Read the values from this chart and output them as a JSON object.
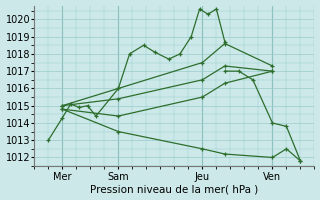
{
  "title": "Pression niveau de la mer( hPa )",
  "bg_color": "#cce8e8",
  "grid_color": "#99cccc",
  "line_color": "#2d6e2d",
  "xlim": [
    0,
    10
  ],
  "ylim": [
    1011.5,
    1020.8
  ],
  "yticks": [
    1012,
    1013,
    1014,
    1015,
    1016,
    1017,
    1018,
    1019,
    1020
  ],
  "xtick_positions": [
    1,
    3,
    6,
    8.5
  ],
  "xtick_labels": [
    "Mer",
    "Sam",
    "Jeu",
    "Ven"
  ],
  "vlines": [
    1,
    3,
    6,
    8.5
  ],
  "series": [
    {
      "x": [
        0.5,
        1.0,
        1.3,
        1.6,
        1.9,
        2.2,
        3.0,
        3.4,
        3.9,
        4.3,
        4.8,
        5.2,
        5.6,
        5.9,
        6.2,
        6.5,
        6.8
      ],
      "y": [
        1013.0,
        1014.3,
        1015.1,
        1014.9,
        1015.0,
        1014.4,
        1016.0,
        1018.0,
        1018.5,
        1018.1,
        1017.7,
        1018.0,
        1019.0,
        1020.6,
        1020.3,
        1020.6,
        1018.7
      ]
    },
    {
      "x": [
        1.0,
        3.0,
        6.0,
        6.8,
        8.5
      ],
      "y": [
        1015.0,
        1016.0,
        1017.5,
        1018.6,
        1017.3
      ]
    },
    {
      "x": [
        1.0,
        3.0,
        6.0,
        6.8,
        8.5
      ],
      "y": [
        1015.0,
        1015.4,
        1016.5,
        1017.3,
        1017.0
      ]
    },
    {
      "x": [
        1.0,
        3.0,
        6.0,
        6.8,
        8.5
      ],
      "y": [
        1014.8,
        1014.4,
        1015.5,
        1016.3,
        1017.0
      ]
    },
    {
      "x": [
        1.0,
        3.0,
        6.0,
        6.8,
        8.5,
        9.0,
        9.5
      ],
      "y": [
        1014.8,
        1013.5,
        1012.5,
        1012.2,
        1012.0,
        1012.5,
        1011.8
      ]
    },
    {
      "x": [
        6.8,
        7.3,
        7.8,
        8.5,
        9.0,
        9.5
      ],
      "y": [
        1017.0,
        1017.0,
        1016.5,
        1014.0,
        1013.8,
        1011.8
      ]
    }
  ]
}
